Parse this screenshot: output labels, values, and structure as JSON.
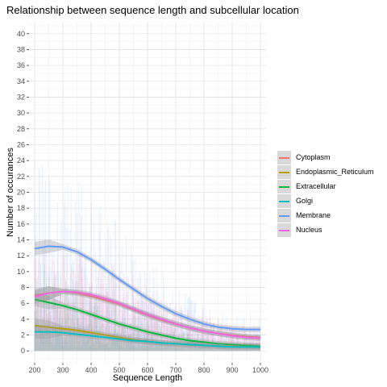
{
  "chart_data": {
    "type": "line",
    "title": "Relationship between sequence length and subcellular location",
    "xlabel": "Sequence Length",
    "ylabel": "Number of occurances",
    "xlim": [
      180,
      1020
    ],
    "ylim": [
      -1.5,
      41.5
    ],
    "x_ticks": [
      200,
      300,
      400,
      500,
      600,
      700,
      800,
      900,
      1000
    ],
    "y_ticks": [
      0,
      2,
      4,
      6,
      8,
      10,
      12,
      14,
      16,
      18,
      20,
      22,
      24,
      26,
      28,
      30,
      32,
      34,
      36,
      38,
      40
    ],
    "grid": true,
    "legend_position": "right",
    "x": [
      200,
      250,
      300,
      350,
      400,
      450,
      500,
      550,
      600,
      650,
      700,
      750,
      800,
      850,
      900,
      950,
      1000
    ],
    "series": [
      {
        "name": "Cytoplasm",
        "color": "#F8766D",
        "values": [
          7.0,
          7.3,
          7.5,
          7.3,
          6.9,
          6.4,
          5.9,
          5.2,
          4.5,
          3.9,
          3.4,
          2.9,
          2.5,
          2.2,
          2.0,
          1.8,
          1.7
        ]
      },
      {
        "name": "Endoplasmic_Reticulum",
        "color": "#B79F00",
        "values": [
          3.2,
          3.0,
          2.8,
          2.6,
          2.3,
          2.0,
          1.7,
          1.4,
          1.2,
          1.0,
          0.9,
          0.8,
          0.7,
          0.6,
          0.6,
          0.6,
          0.6
        ]
      },
      {
        "name": "Extracellular",
        "color": "#00BA38",
        "values": [
          6.5,
          6.1,
          5.7,
          5.2,
          4.6,
          4.0,
          3.4,
          2.9,
          2.4,
          2.0,
          1.6,
          1.3,
          1.1,
          0.9,
          0.8,
          0.7,
          0.6
        ]
      },
      {
        "name": "Golgi",
        "color": "#00BFC4",
        "values": [
          2.4,
          2.4,
          2.3,
          2.1,
          1.9,
          1.7,
          1.5,
          1.3,
          1.2,
          1.0,
          0.9,
          0.8,
          0.7,
          0.6,
          0.5,
          0.5,
          0.5
        ]
      },
      {
        "name": "Membrane",
        "color": "#619CFF",
        "values": [
          12.9,
          13.2,
          13.1,
          12.5,
          11.5,
          10.3,
          9.0,
          7.8,
          6.6,
          5.6,
          4.7,
          4.0,
          3.4,
          3.0,
          2.8,
          2.7,
          2.7
        ]
      },
      {
        "name": "Nucleus",
        "color": "#F564E3",
        "values": [
          6.8,
          7.3,
          7.5,
          7.4,
          7.1,
          6.6,
          6.0,
          5.3,
          4.6,
          4.0,
          3.4,
          2.9,
          2.5,
          2.2,
          1.9,
          1.7,
          1.6
        ]
      }
    ]
  }
}
